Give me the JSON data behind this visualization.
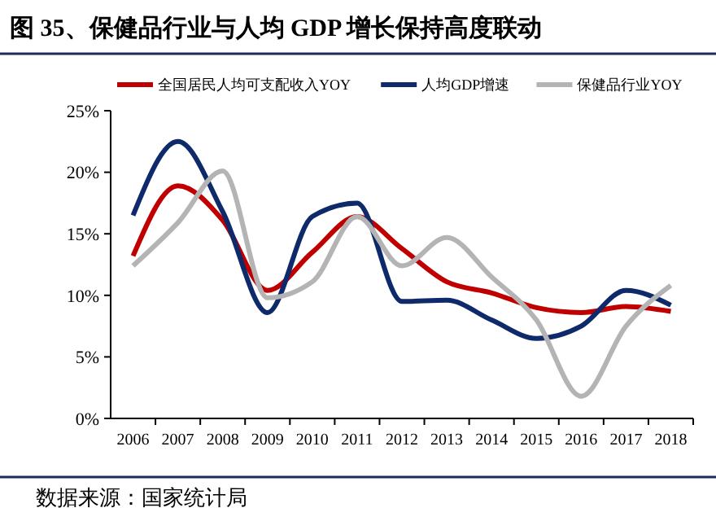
{
  "chart_data": {
    "type": "line",
    "title": "图 35、保健品行业与人均 GDP 增长保持高度联动",
    "annotations": [
      "数据来源：国家统计局"
    ],
    "categories": [
      "2006",
      "2007",
      "2008",
      "2009",
      "2010",
      "2011",
      "2012",
      "2013",
      "2014",
      "2015",
      "2016",
      "2017",
      "2018"
    ],
    "series": [
      {
        "name": "全国居民人均可支配收入YOY",
        "color": "#c00000",
        "values": [
          13.2,
          18.9,
          16.1,
          10.4,
          13.5,
          16.4,
          13.8,
          11.1,
          10.2,
          9.0,
          8.6,
          9.1,
          8.7
        ]
      },
      {
        "name": "人均GDP增速",
        "color": "#0e2a6b",
        "values": [
          16.5,
          22.5,
          16.8,
          8.6,
          16.4,
          17.5,
          9.5,
          9.6,
          8.0,
          6.5,
          7.5,
          10.4,
          9.2
        ]
      },
      {
        "name": "保健品行业YOY",
        "color": "#b4b4b4",
        "values": [
          12.4,
          15.9,
          20.1,
          9.8,
          11.1,
          16.4,
          12.4,
          14.7,
          11.5,
          8.0,
          1.8,
          7.5,
          10.8
        ]
      }
    ],
    "ylim": [
      0,
      25
    ],
    "yticks": [
      {
        "value": 0,
        "label": "0%"
      },
      {
        "value": 5,
        "label": "5%"
      },
      {
        "value": 10,
        "label": "10%"
      },
      {
        "value": 15,
        "label": "15%"
      },
      {
        "value": 20,
        "label": "20%"
      },
      {
        "value": 25,
        "label": "25%"
      }
    ],
    "legend": "top",
    "grid": false
  }
}
